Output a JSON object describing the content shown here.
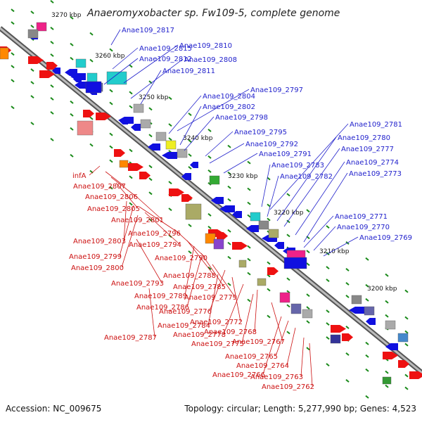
{
  "title": "Anaeromyxobacter sp. Fw109-5, complete genome",
  "footer": {
    "accession": "Accession: NC_009675",
    "topology": "Topology: circular; Length: 5,277,990 bp; Genes: 4,523"
  },
  "ticks": [
    "3270 kbp",
    "3260 kbp",
    "3250 kbp",
    "3240 kbp",
    "3230 kbp",
    "3220 kbp",
    "3210 kbp",
    "3200 kbp"
  ],
  "labels_blue": [
    "Anae109_2817",
    "Anae109_2815",
    "Anae109_2810",
    "Anae109_2812",
    "Anae109_2808",
    "Anae109_2811",
    "Anae109_2797",
    "Anae109_2804",
    "Anae109_2802",
    "Anae109_2798",
    "Anae109_2795",
    "Anae109_2792",
    "Anae109_2791",
    "Anae109_2783",
    "Anae109_2782",
    "Anae109_2781",
    "Anae109_2780",
    "Anae109_2777",
    "Anae109_2774",
    "Anae109_2773",
    "Anae109_2771",
    "Anae109_2770",
    "Anae109_2769"
  ],
  "labels_red": [
    "infA",
    "Anae109_2807",
    "Anae109_2806",
    "Anae109_2805",
    "Anae109_2801",
    "Anae109_2803",
    "Anae109_2796",
    "Anae109_2794",
    "Anae109_2799",
    "Anae109_2800",
    "Anae109_2790",
    "Anae109_2788",
    "Anae109_2793",
    "Anae109_2785",
    "Anae109_2789",
    "Anae109_2779",
    "Anae109_2786",
    "Anae109_2776",
    "Anae109_2772",
    "Anae109_2784",
    "Anae109_2778",
    "Anae109_2768",
    "Anae109_2787",
    "Anae109_2775",
    "Anae109_2767",
    "Anae109_2765",
    "Anae109_2764",
    "Anae109_2766",
    "Anae109_2763",
    "Anae109_2762"
  ],
  "colors": {
    "forward": "#1010e0",
    "reverse": "#ee1111",
    "backbone": "#808080",
    "blue_label": "#2222cc",
    "red_label": "#cc1111",
    "tick_dash": "#1a8a1a"
  }
}
